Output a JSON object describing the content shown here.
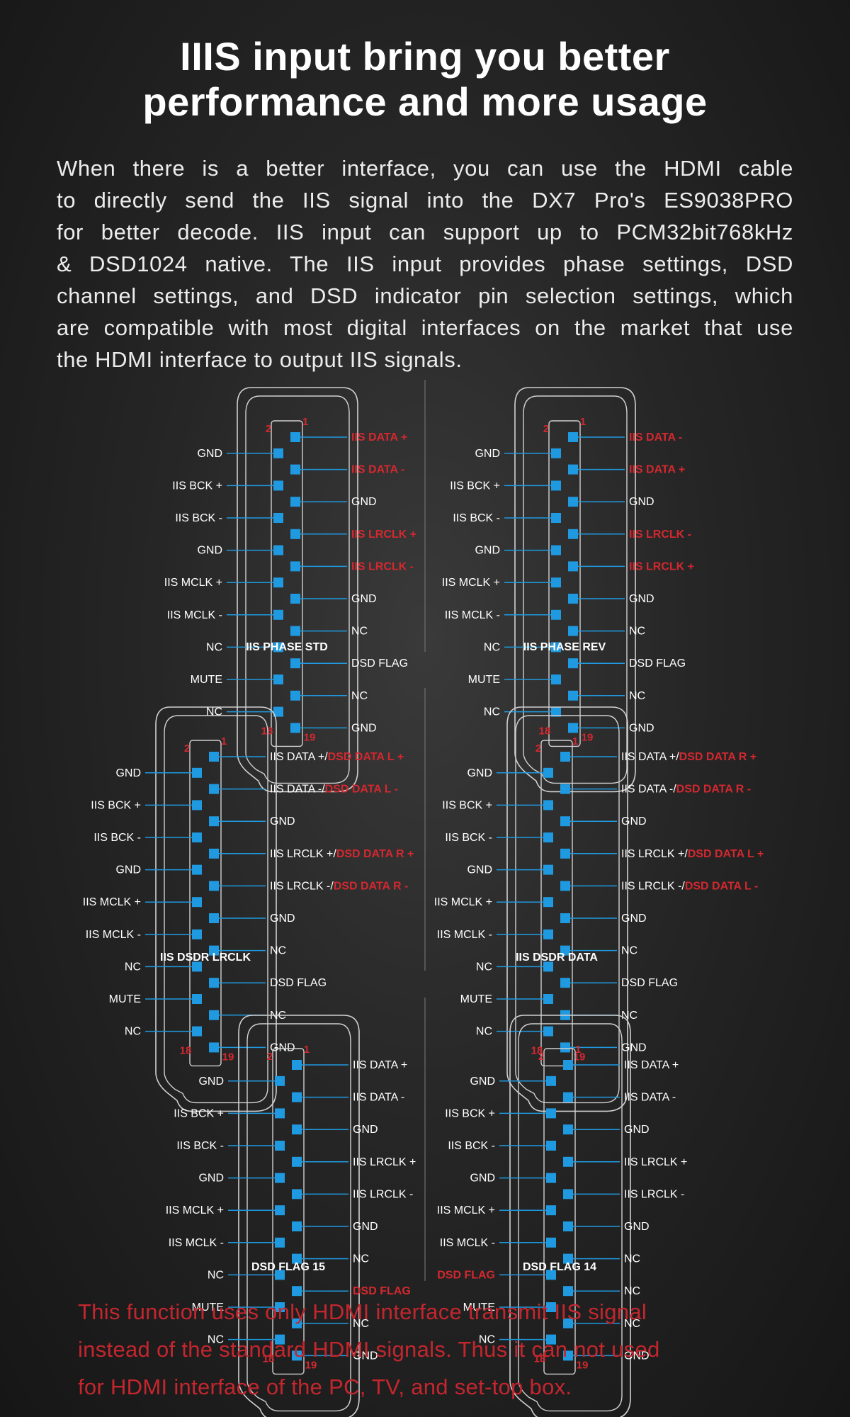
{
  "headline": {
    "line1": "IIIS input bring you better",
    "line2": "performance and more usage"
  },
  "intro_lines": [
    "When there is a better interface, you can use the HDMI cable",
    "to directly send the IIS signal into the DX7 Pro's ES9038PRO",
    "for better decode. IIS input can support up to PCM32bit768kHz",
    "& DSD1024 native. The IIS input provides phase settings, DSD",
    "channel settings, and DSD indicator pin selection settings, which",
    "are compatible with most digital interfaces on the market that use",
    "the HDMI interface to output IIS signals."
  ],
  "pin_numbers": {
    "top_even": "2",
    "top_odd": "1",
    "bottom_even": "18",
    "bottom_odd": "19"
  },
  "colors": {
    "pin": "#1f9ae0",
    "accent": "#d4282f",
    "outline": "#d0d0d0"
  },
  "diagrams": [
    {
      "title": "IIS PHASE STD",
      "left": [
        {
          "t": "GND"
        },
        {
          "t": "IIS BCK +"
        },
        {
          "t": "IIS BCK -"
        },
        {
          "t": "GND"
        },
        {
          "t": "IIS MCLK +"
        },
        {
          "t": "IIS MCLK -"
        },
        {
          "t": "NC"
        },
        {
          "t": "MUTE"
        },
        {
          "t": "NC"
        }
      ],
      "right": [
        [
          {
            "t": "IIS DATA +",
            "red": true
          }
        ],
        [
          {
            "t": "IIS DATA -",
            "red": true
          }
        ],
        [
          {
            "t": "GND"
          }
        ],
        [
          {
            "t": "IIS LRCLK +",
            "red": true
          }
        ],
        [
          {
            "t": "IIS LRCLK -",
            "red": true
          }
        ],
        [
          {
            "t": "GND"
          }
        ],
        [
          {
            "t": "NC"
          }
        ],
        [
          {
            "t": "DSD FLAG"
          }
        ],
        [
          {
            "t": "NC"
          }
        ],
        [
          {
            "t": "GND"
          }
        ]
      ]
    },
    {
      "title": "IIS PHASE REV",
      "left": [
        {
          "t": "GND"
        },
        {
          "t": "IIS BCK +"
        },
        {
          "t": "IIS BCK -"
        },
        {
          "t": "GND"
        },
        {
          "t": "IIS MCLK +"
        },
        {
          "t": "IIS MCLK -"
        },
        {
          "t": "NC"
        },
        {
          "t": "MUTE"
        },
        {
          "t": "NC"
        }
      ],
      "right": [
        [
          {
            "t": "IIS DATA -",
            "red": true
          }
        ],
        [
          {
            "t": "IIS DATA +",
            "red": true
          }
        ],
        [
          {
            "t": "GND"
          }
        ],
        [
          {
            "t": "IIS LRCLK -",
            "red": true
          }
        ],
        [
          {
            "t": "IIS LRCLK +",
            "red": true
          }
        ],
        [
          {
            "t": "GND"
          }
        ],
        [
          {
            "t": "NC"
          }
        ],
        [
          {
            "t": "DSD FLAG"
          }
        ],
        [
          {
            "t": "NC"
          }
        ],
        [
          {
            "t": "GND"
          }
        ]
      ]
    },
    {
      "title": "IIS DSDR LRCLK",
      "left": [
        {
          "t": "GND"
        },
        {
          "t": "IIS BCK +"
        },
        {
          "t": "IIS BCK -"
        },
        {
          "t": "GND"
        },
        {
          "t": "IIS MCLK +"
        },
        {
          "t": "IIS MCLK -"
        },
        {
          "t": "NC"
        },
        {
          "t": "MUTE"
        },
        {
          "t": "NC"
        }
      ],
      "right": [
        [
          {
            "t": "IIS DATA +/"
          },
          {
            "t": "DSD DATA L +",
            "red": true
          }
        ],
        [
          {
            "t": "IIS DATA -/"
          },
          {
            "t": "DSD DATA L -",
            "red": true
          }
        ],
        [
          {
            "t": "GND"
          }
        ],
        [
          {
            "t": "IIS LRCLK +/"
          },
          {
            "t": "DSD DATA R +",
            "red": true
          }
        ],
        [
          {
            "t": "IIS LRCLK -/"
          },
          {
            "t": "DSD DATA R -",
            "red": true
          }
        ],
        [
          {
            "t": "GND"
          }
        ],
        [
          {
            "t": "NC"
          }
        ],
        [
          {
            "t": "DSD FLAG"
          }
        ],
        [
          {
            "t": "NC"
          }
        ],
        [
          {
            "t": "GND"
          }
        ]
      ]
    },
    {
      "title": "IIS DSDR DATA",
      "left": [
        {
          "t": "GND"
        },
        {
          "t": "IIS BCK +"
        },
        {
          "t": "IIS BCK -"
        },
        {
          "t": "GND"
        },
        {
          "t": "IIS MCLK +"
        },
        {
          "t": "IIS MCLK -"
        },
        {
          "t": "NC"
        },
        {
          "t": "MUTE"
        },
        {
          "t": "NC"
        }
      ],
      "right": [
        [
          {
            "t": "IIS DATA +/"
          },
          {
            "t": "DSD DATA R +",
            "red": true
          }
        ],
        [
          {
            "t": "IIS DATA -/"
          },
          {
            "t": "DSD DATA R -",
            "red": true
          }
        ],
        [
          {
            "t": "GND"
          }
        ],
        [
          {
            "t": "IIS LRCLK +/"
          },
          {
            "t": "DSD DATA L +",
            "red": true
          }
        ],
        [
          {
            "t": "IIS LRCLK -/"
          },
          {
            "t": "DSD DATA L -",
            "red": true
          }
        ],
        [
          {
            "t": "GND"
          }
        ],
        [
          {
            "t": "NC"
          }
        ],
        [
          {
            "t": "DSD FLAG"
          }
        ],
        [
          {
            "t": "NC"
          }
        ],
        [
          {
            "t": "GND"
          }
        ]
      ]
    },
    {
      "title": "DSD FLAG 15",
      "left": [
        {
          "t": "GND"
        },
        {
          "t": "IIS BCK +"
        },
        {
          "t": "IIS BCK -"
        },
        {
          "t": "GND"
        },
        {
          "t": "IIS MCLK +"
        },
        {
          "t": "IIS MCLK -"
        },
        {
          "t": "NC"
        },
        {
          "t": "MUTE"
        },
        {
          "t": "NC"
        }
      ],
      "right": [
        [
          {
            "t": "IIS DATA +"
          }
        ],
        [
          {
            "t": "IIS DATA -"
          }
        ],
        [
          {
            "t": "GND"
          }
        ],
        [
          {
            "t": "IIS LRCLK +"
          }
        ],
        [
          {
            "t": "IIS LRCLK -"
          }
        ],
        [
          {
            "t": "GND"
          }
        ],
        [
          {
            "t": "NC"
          }
        ],
        [
          {
            "t": "DSD FLAG",
            "red": true
          }
        ],
        [
          {
            "t": "NC"
          }
        ],
        [
          {
            "t": "GND"
          }
        ]
      ]
    },
    {
      "title": "DSD FLAG 14",
      "left": [
        {
          "t": "GND"
        },
        {
          "t": "IIS BCK +"
        },
        {
          "t": "IIS BCK -"
        },
        {
          "t": "GND"
        },
        {
          "t": "IIS MCLK +"
        },
        {
          "t": "IIS MCLK -"
        },
        {
          "t": "DSD FLAG",
          "red": true
        },
        {
          "t": "MUTE"
        },
        {
          "t": "NC"
        }
      ],
      "right": [
        [
          {
            "t": "IIS DATA +"
          }
        ],
        [
          {
            "t": "IIS DATA -"
          }
        ],
        [
          {
            "t": "GND"
          }
        ],
        [
          {
            "t": "IIS LRCLK +"
          }
        ],
        [
          {
            "t": "IIS LRCLK -"
          }
        ],
        [
          {
            "t": "GND"
          }
        ],
        [
          {
            "t": "NC"
          }
        ],
        [
          {
            "t": "NC"
          }
        ],
        [
          {
            "t": "NC"
          }
        ],
        [
          {
            "t": "GND"
          }
        ]
      ]
    }
  ],
  "footer_lines": [
    "This function uses only HDMI interface transmit IIS signal",
    "instead of the standard HDMI signals. Thus it can not used",
    "for HDMI interface of the PC, TV, and set-top box."
  ]
}
